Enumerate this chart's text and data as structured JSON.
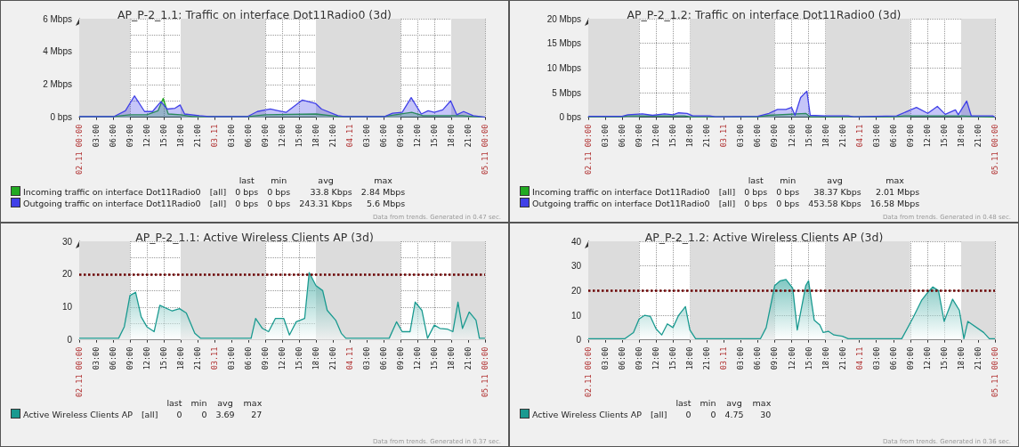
{
  "chart_data": [
    {
      "type": "area",
      "title": "AP_P-2_1.1: Traffic on interface Dot11Radio0 (3d)",
      "xlim": [
        "--11-02T00:00",
        "--11-05T00:00"
      ],
      "xticks": [
        {
          "value": "--11-02T00:00",
          "label": "02.11 00:00"
        },
        {
          "value": "--11-02T03:00",
          "label": "03:00"
        },
        {
          "value": "--11-02T06:00",
          "label": "06:00"
        },
        {
          "value": "--11-02T09:00",
          "label": "09:00"
        },
        {
          "value": "--11-02T12:00",
          "label": "12:00"
        },
        {
          "value": "--11-02T15:00",
          "label": "15:00"
        },
        {
          "value": "--11-02T18:00",
          "label": "18:00"
        },
        {
          "value": "--11-02T21:00",
          "label": "21:00"
        },
        {
          "value": "--11-03T00:00",
          "label": "03.11"
        },
        {
          "value": "--11-03T03:00",
          "label": "03:00"
        },
        {
          "value": "--11-03T06:00",
          "label": "06:00"
        },
        {
          "value": "--11-03T09:00",
          "label": "09:00"
        },
        {
          "value": "--11-03T12:00",
          "label": "12:00"
        },
        {
          "value": "--11-03T15:00",
          "label": "15:00"
        },
        {
          "value": "--11-03T18:00",
          "label": "18:00"
        },
        {
          "value": "--11-03T21:00",
          "label": "21:00"
        },
        {
          "value": "--11-04T00:00",
          "label": "04.11"
        },
        {
          "value": "--11-04T03:00",
          "label": "03:00"
        },
        {
          "value": "--11-04T06:00",
          "label": "06:00"
        },
        {
          "value": "--11-04T09:00",
          "label": "09:00"
        },
        {
          "value": "--11-04T12:00",
          "label": "12:00"
        },
        {
          "value": "--11-04T15:00",
          "label": "15:00"
        },
        {
          "value": "--11-04T18:00",
          "label": "18:00"
        },
        {
          "value": "--11-04T21:00",
          "label": "21:00"
        },
        {
          "value": "--11-05T00:00",
          "label": "05.11 00:00"
        }
      ],
      "ylim": [
        0,
        6
      ],
      "yticks": [
        {
          "value": 0,
          "label": "0 bps"
        },
        {
          "value": 1,
          "label": null
        },
        {
          "value": 2,
          "label": "2 Mbps"
        },
        {
          "value": 3,
          "label": null
        },
        {
          "value": 4,
          "label": "4 Mbps"
        },
        {
          "value": 5,
          "label": null
        },
        {
          "value": 6,
          "label": "6 Mbps"
        }
      ],
      "grid": true,
      "legend": "bottom left",
      "bands": [
        {
          "axis": "x",
          "from": "--11-02T00:00",
          "to": "--11-02T09:00",
          "color": "#dcdcdc"
        },
        {
          "axis": "x",
          "from": "--11-02T18:00",
          "to": "--11-03T09:00",
          "color": "#dcdcdc"
        },
        {
          "axis": "x",
          "from": "--11-03T18:00",
          "to": "--11-04T09:00",
          "color": "#dcdcdc"
        },
        {
          "axis": "x",
          "from": "--11-04T18:00",
          "to": "--11-05T00:00",
          "color": "#dcdcdc"
        }
      ],
      "series": [
        {
          "name": "Incoming traffic on interface Dot11Radio0",
          "color": "#22aa22",
          "x": [
            "--11-02T00:00",
            "--11-02T06:00",
            "--11-02T09:00",
            "--11-02T12:00",
            "--11-02T14:00",
            "--11-02T14:54",
            "--11-02T15:48",
            "--11-02T18:00",
            "--11-02T20:00",
            "--11-03T06:00",
            "--11-03T09:00",
            "--11-03T18:00",
            "--11-03T22:00",
            "--11-04T06:00",
            "--11-04T11:00",
            "--11-04T13:00",
            "--11-04T20:00",
            "--11-04T22:00",
            "--11-05T00:00"
          ],
          "values": [
            0.05,
            0.05,
            0.15,
            0.15,
            0.4,
            1.15,
            0.2,
            0.15,
            0.05,
            0.05,
            0.15,
            0.2,
            0.05,
            0.05,
            0.3,
            0.1,
            0.1,
            0.05,
            0
          ]
        },
        {
          "name": "Outgoing traffic on interface Dot11Radio0",
          "color": "#4040e8",
          "x": [
            "--11-02T00:00",
            "--11-02T06:12",
            "--11-02T08:12",
            "--11-02T09:48",
            "--11-02T11:36",
            "--11-02T13:00",
            "--11-02T14:30",
            "--11-02T15:36",
            "--11-02T17:00",
            "--11-02T17:54",
            "--11-02T18:42",
            "--11-02T21:18",
            "--11-02T23:00",
            "--11-03T05:54",
            "--11-03T07:36",
            "--11-03T09:54",
            "--11-03T11:18",
            "--11-03T12:42",
            "--11-03T15:36",
            "--11-03T17:54",
            "--11-03T19:00",
            "--11-03T21:54",
            "--11-03T23:00",
            "--11-04T06:12",
            "--11-04T07:36",
            "--11-04T09:18",
            "--11-04T10:54",
            "--11-04T12:42",
            "--11-04T13:54",
            "--11-04T15:00",
            "--11-04T16:30",
            "--11-04T17:54",
            "--11-04T19:00",
            "--11-04T20:12",
            "--11-04T21:54",
            "--11-05T00:00"
          ],
          "values": [
            0.05,
            0.05,
            0.4,
            1.3,
            0.35,
            0.35,
            0.95,
            0.5,
            0.55,
            0.75,
            0.2,
            0.1,
            0.05,
            0.05,
            0.35,
            0.5,
            0.4,
            0.3,
            1.05,
            0.85,
            0.5,
            0.1,
            0.05,
            0.05,
            0.25,
            0.3,
            1.2,
            0.2,
            0.4,
            0.3,
            0.45,
            1.0,
            0.15,
            0.35,
            0.1,
            0
          ]
        }
      ],
      "annotations": [
        "last",
        "min",
        "avg",
        "max",
        "[all]",
        "0 bps",
        "0 bps",
        "33.8 Kbps",
        "2.84 Mbps",
        "[all]",
        "0 bps",
        "0 bps",
        "243.31 Kbps",
        "5.6 Mbps",
        "Data from trends. Generated in 0.47 sec."
      ]
    },
    {
      "type": "area",
      "title": "AP_P-2_1.2: Traffic on interface Dot11Radio0 (3d)",
      "xlim": [
        "--11-02T00:00",
        "--11-05T00:00"
      ],
      "xticks": [
        {
          "value": "--11-02T00:00",
          "label": "02.11 00:00"
        },
        {
          "value": "--11-02T03:00",
          "label": "03:00"
        },
        {
          "value": "--11-02T06:00",
          "label": "06:00"
        },
        {
          "value": "--11-02T09:00",
          "label": "09:00"
        },
        {
          "value": "--11-02T12:00",
          "label": "12:00"
        },
        {
          "value": "--11-02T15:00",
          "label": "15:00"
        },
        {
          "value": "--11-02T18:00",
          "label": "18:00"
        },
        {
          "value": "--11-02T21:00",
          "label": "21:00"
        },
        {
          "value": "--11-03T00:00",
          "label": "03.11"
        },
        {
          "value": "--11-03T03:00",
          "label": "03:00"
        },
        {
          "value": "--11-03T06:00",
          "label": "06:00"
        },
        {
          "value": "--11-03T09:00",
          "label": "09:00"
        },
        {
          "value": "--11-03T12:00",
          "label": "12:00"
        },
        {
          "value": "--11-03T15:00",
          "label": "15:00"
        },
        {
          "value": "--11-03T18:00",
          "label": "18:00"
        },
        {
          "value": "--11-03T21:00",
          "label": "21:00"
        },
        {
          "value": "--11-04T00:00",
          "label": "04.11"
        },
        {
          "value": "--11-04T03:00",
          "label": "03:00"
        },
        {
          "value": "--11-04T06:00",
          "label": "06:00"
        },
        {
          "value": "--11-04T09:00",
          "label": "09:00"
        },
        {
          "value": "--11-04T12:00",
          "label": "12:00"
        },
        {
          "value": "--11-04T15:00",
          "label": "15:00"
        },
        {
          "value": "--11-04T18:00",
          "label": "18:00"
        },
        {
          "value": "--11-04T21:00",
          "label": "21:00"
        },
        {
          "value": "--11-05T00:00",
          "label": "05.11 00:00"
        }
      ],
      "ylim": [
        0,
        20
      ],
      "yticks": [
        {
          "value": 0,
          "label": "0 bps"
        },
        {
          "value": 5,
          "label": "5 Mbps"
        },
        {
          "value": 10,
          "label": "10 Mbps"
        },
        {
          "value": 15,
          "label": "15 Mbps"
        },
        {
          "value": 20,
          "label": "20 Mbps"
        }
      ],
      "grid": true,
      "legend": "bottom left",
      "bands": [
        {
          "axis": "x",
          "from": "--11-02T00:00",
          "to": "--11-02T09:00",
          "color": "#dcdcdc"
        },
        {
          "axis": "x",
          "from": "--11-02T18:00",
          "to": "--11-03T09:00",
          "color": "#dcdcdc"
        },
        {
          "axis": "x",
          "from": "--11-03T18:00",
          "to": "--11-04T09:00",
          "color": "#dcdcdc"
        },
        {
          "axis": "x",
          "from": "--11-04T18:00",
          "to": "--11-05T00:00",
          "color": "#dcdcdc"
        }
      ],
      "series": [
        {
          "name": "Incoming traffic on interface Dot11Radio0",
          "color": "#22aa22",
          "x": [
            "--11-02T00:00",
            "--11-02T06:00",
            "--11-02T07:00",
            "--11-02T17:00",
            "--11-02T18:00",
            "--11-03T06:00",
            "--11-03T08:00",
            "--11-03T14:30",
            "--11-03T15:18",
            "--11-03T22:00",
            "--11-04T06:00",
            "--11-04T08:00",
            "--11-04T18:00",
            "--11-05T00:00"
          ],
          "values": [
            0.1,
            0.1,
            0.3,
            0.3,
            0.1,
            0.1,
            0.4,
            0.8,
            0.1,
            0.1,
            0.1,
            0.3,
            0.3,
            0
          ]
        },
        {
          "name": "Outgoing traffic on interface Dot11Radio0",
          "color": "#4040e8",
          "x": [
            "--11-02T00:00",
            "--11-02T06:00",
            "--11-02T07:00",
            "--11-02T09:36",
            "--11-02T11:24",
            "--11-02T13:30",
            "--11-02T15:00",
            "--11-02T16:00",
            "--11-02T17:30",
            "--11-02T18:30",
            "--11-02T21:30",
            "--11-02T22:30",
            "--11-03T06:00",
            "--11-03T08:00",
            "--11-03T09:30",
            "--11-03T11:00",
            "--11-03T12:00",
            "--11-03T12:36",
            "--11-03T13:36",
            "--11-03T14:42",
            "--11-03T15:18",
            "--11-03T18:00",
            "--11-03T22:00",
            "--11-03T23:00",
            "--11-04T06:36",
            "--11-04T10:06",
            "--11-04T12:06",
            "--11-04T13:48",
            "--11-04T15:12",
            "--11-04T17:00",
            "--11-04T17:30",
            "--11-04T19:00",
            "--11-04T19:48",
            "--11-04T23:36",
            "--11-05T00:00"
          ],
          "values": [
            0.2,
            0.2,
            0.5,
            0.7,
            0.4,
            0.7,
            0.5,
            0.9,
            0.8,
            0.3,
            0.3,
            0.1,
            0.2,
            0.8,
            1.6,
            1.6,
            2.0,
            0.4,
            4.0,
            5.3,
            0.4,
            0.3,
            0.3,
            0.1,
            0.3,
            2.0,
            0.8,
            2.2,
            0.6,
            1.5,
            0.5,
            3.3,
            0.3,
            0.3,
            0
          ]
        }
      ],
      "annotations": [
        "last",
        "min",
        "avg",
        "max",
        "[all]",
        "0 bps",
        "0 bps",
        "38.37 Kbps",
        "2.01 Mbps",
        "[all]",
        "0 bps",
        "0 bps",
        "453.58 Kbps",
        "16.58 Mbps",
        "Data from trends. Generated in 0.48 sec."
      ]
    },
    {
      "type": "area",
      "title": "AP_P-2_1.1: Active Wireless Clients AP (3d)",
      "xlim": [
        "--11-02T00:00",
        "--11-05T00:00"
      ],
      "xticks": [
        {
          "value": "--11-02T00:00",
          "label": "02.11 00:00"
        },
        {
          "value": "--11-02T03:00",
          "label": "03:00"
        },
        {
          "value": "--11-02T06:00",
          "label": "06:00"
        },
        {
          "value": "--11-02T09:00",
          "label": "09:00"
        },
        {
          "value": "--11-02T12:00",
          "label": "12:00"
        },
        {
          "value": "--11-02T15:00",
          "label": "15:00"
        },
        {
          "value": "--11-02T18:00",
          "label": "18:00"
        },
        {
          "value": "--11-02T21:00",
          "label": "21:00"
        },
        {
          "value": "--11-03T00:00",
          "label": "03.11"
        },
        {
          "value": "--11-03T03:00",
          "label": "03:00"
        },
        {
          "value": "--11-03T06:00",
          "label": "06:00"
        },
        {
          "value": "--11-03T09:00",
          "label": "09:00"
        },
        {
          "value": "--11-03T12:00",
          "label": "12:00"
        },
        {
          "value": "--11-03T15:00",
          "label": "15:00"
        },
        {
          "value": "--11-03T18:00",
          "label": "18:00"
        },
        {
          "value": "--11-03T21:00",
          "label": "21:00"
        },
        {
          "value": "--11-04T00:00",
          "label": "04.11"
        },
        {
          "value": "--11-04T03:00",
          "label": "03:00"
        },
        {
          "value": "--11-04T06:00",
          "label": "06:00"
        },
        {
          "value": "--11-04T09:00",
          "label": "09:00"
        },
        {
          "value": "--11-04T12:00",
          "label": "12:00"
        },
        {
          "value": "--11-04T15:00",
          "label": "15:00"
        },
        {
          "value": "--11-04T18:00",
          "label": "18:00"
        },
        {
          "value": "--11-04T21:00",
          "label": "21:00"
        },
        {
          "value": "--11-05T00:00",
          "label": "05.11 00:00"
        }
      ],
      "ylim": [
        0,
        30
      ],
      "yticks": [
        0,
        {
          "value": 5,
          "label": null
        },
        10,
        {
          "value": 15,
          "label": null
        },
        20,
        {
          "value": 25,
          "label": null
        },
        30
      ],
      "grid": true,
      "legend": "bottom left",
      "bands": [
        {
          "axis": "x",
          "from": "--11-02T00:00",
          "to": "--11-02T09:00",
          "color": "#dcdcdc"
        },
        {
          "axis": "x",
          "from": "--11-02T18:00",
          "to": "--11-03T09:00",
          "color": "#dcdcdc"
        },
        {
          "axis": "x",
          "from": "--11-03T18:00",
          "to": "--11-04T09:00",
          "color": "#dcdcdc"
        },
        {
          "axis": "x",
          "from": "--11-04T18:00",
          "to": "--11-05T00:00",
          "color": "#dcdcdc"
        }
      ],
      "ref_lines": [
        {
          "axis": "y",
          "value": 20,
          "color": "#6a0000",
          "line_style": "dotted"
        }
      ],
      "series": [
        {
          "name": "Active Wireless Clients AP",
          "color": "#1a9a90",
          "x": [
            "--11-02T00:00",
            "--11-02T07:00",
            "--11-02T08:00",
            "--11-02T09:00",
            "--11-02T10:00",
            "--11-02T11:00",
            "--11-02T12:00",
            "--11-02T13:18",
            "--11-02T14:18",
            "--11-02T16:30",
            "--11-02T17:48",
            "--11-02T19:00",
            "--11-02T20:30",
            "--11-02T21:30",
            "--11-03T06:30",
            "--11-03T07:18",
            "--11-03T08:30",
            "--11-03T09:36",
            "--11-03T10:48",
            "--11-03T12:18",
            "--11-03T13:18",
            "--11-03T14:30",
            "--11-03T16:00",
            "--11-03T16:48",
            "--11-03T18:00",
            "--11-03T19:12",
            "--11-03T20:00",
            "--11-03T21:30",
            "--11-03T22:30",
            "--11-03T23:18",
            "--11-04T07:00",
            "--11-04T08:18",
            "--11-04T09:18",
            "--11-04T10:42",
            "--11-04T11:36",
            "--11-04T12:48",
            "--11-04T13:48",
            "--11-04T15:00",
            "--11-04T16:00",
            "--11-04T17:18",
            "--11-04T18:18",
            "--11-04T19:12",
            "--11-04T20:00",
            "--11-04T21:12",
            "--11-04T22:24",
            "--11-04T23:00",
            "--11-05T00:00"
          ],
          "values": [
            0.5,
            0.5,
            4,
            13.5,
            14.5,
            7,
            4,
            2.5,
            10.5,
            8.8,
            9.5,
            8.2,
            2,
            0.5,
            0.5,
            6.5,
            3.5,
            2.5,
            6.5,
            6.5,
            1.5,
            5.5,
            6.5,
            20.5,
            16.5,
            15,
            9,
            6,
            2,
            0.5,
            0.5,
            5.5,
            2.5,
            2.5,
            11.5,
            9,
            0.5,
            4.5,
            3.5,
            3.3,
            2.5,
            11.5,
            3.5,
            8.5,
            6,
            0.5,
            0.5
          ]
        }
      ],
      "annotations": [
        "last",
        "min",
        "avg",
        "max",
        "[all]",
        "0",
        "0",
        "3.69",
        "27",
        "Data from trends. Generated in 0.37 sec."
      ]
    },
    {
      "type": "area",
      "title": "AP_P-2_1.2: Active Wireless Clients AP (3d)",
      "xlim": [
        "--11-02T00:00",
        "--11-05T00:00"
      ],
      "xticks": [
        {
          "value": "--11-02T00:00",
          "label": "02.11 00:00"
        },
        {
          "value": "--11-02T03:00",
          "label": "03:00"
        },
        {
          "value": "--11-02T06:00",
          "label": "06:00"
        },
        {
          "value": "--11-02T09:00",
          "label": "09:00"
        },
        {
          "value": "--11-02T12:00",
          "label": "12:00"
        },
        {
          "value": "--11-02T15:00",
          "label": "15:00"
        },
        {
          "value": "--11-02T18:00",
          "label": "18:00"
        },
        {
          "value": "--11-02T21:00",
          "label": "21:00"
        },
        {
          "value": "--11-03T00:00",
          "label": "03.11"
        },
        {
          "value": "--11-03T03:00",
          "label": "03:00"
        },
        {
          "value": "--11-03T06:00",
          "label": "06:00"
        },
        {
          "value": "--11-03T09:00",
          "label": "09:00"
        },
        {
          "value": "--11-03T12:00",
          "label": "12:00"
        },
        {
          "value": "--11-03T15:00",
          "label": "15:00"
        },
        {
          "value": "--11-03T18:00",
          "label": "18:00"
        },
        {
          "value": "--11-03T21:00",
          "label": "21:00"
        },
        {
          "value": "--11-04T00:00",
          "label": "04.11"
        },
        {
          "value": "--11-04T03:00",
          "label": "03:00"
        },
        {
          "value": "--11-04T06:00",
          "label": "06:00"
        },
        {
          "value": "--11-04T09:00",
          "label": "09:00"
        },
        {
          "value": "--11-04T12:00",
          "label": "12:00"
        },
        {
          "value": "--11-04T15:00",
          "label": "15:00"
        },
        {
          "value": "--11-04T18:00",
          "label": "18:00"
        },
        {
          "value": "--11-04T21:00",
          "label": "21:00"
        },
        {
          "value": "--11-05T00:00",
          "label": "05.11 00:00"
        }
      ],
      "ylim": [
        0,
        40
      ],
      "yticks": [
        0,
        10,
        20,
        30,
        40
      ],
      "grid": true,
      "legend": "bottom left",
      "bands": [
        {
          "axis": "x",
          "from": "--11-02T00:00",
          "to": "--11-02T09:00",
          "color": "#dcdcdc"
        },
        {
          "axis": "x",
          "from": "--11-02T18:00",
          "to": "--11-03T09:00",
          "color": "#dcdcdc"
        },
        {
          "axis": "x",
          "from": "--11-03T18:00",
          "to": "--11-04T09:00",
          "color": "#dcdcdc"
        },
        {
          "axis": "x",
          "from": "--11-04T18:00",
          "to": "--11-05T00:00",
          "color": "#dcdcdc"
        }
      ],
      "ref_lines": [
        {
          "axis": "y",
          "value": 20,
          "color": "#6a0000",
          "line_style": "dotted"
        }
      ],
      "series": [
        {
          "name": "Active Wireless Clients AP",
          "color": "#1a9a90",
          "x": [
            "--11-02T00:00",
            "--11-02T06:30",
            "--11-02T08:00",
            "--11-02T09:00",
            "--11-02T10:00",
            "--11-02T11:00",
            "--11-02T12:00",
            "--11-02T13:00",
            "--11-02T14:00",
            "--11-02T15:00",
            "--11-02T16:00",
            "--11-02T17:12",
            "--11-02T18:00",
            "--11-02T19:00",
            "--11-03T06:30",
            "--11-03T07:30",
            "--11-03T09:00",
            "--11-03T10:00",
            "--11-03T11:00",
            "--11-03T12:12",
            "--11-03T13:00",
            "--11-03T14:30",
            "--11-03T15:00",
            "--11-03T16:00",
            "--11-03T17:00",
            "--11-03T17:36",
            "--11-03T18:30",
            "--11-03T19:30",
            "--11-03T21:00",
            "--11-03T22:00",
            "--11-04T07:30",
            "--11-04T09:30",
            "--11-04T11:00",
            "--11-04T12:00",
            "--11-04T13:00",
            "--11-04T14:00",
            "--11-04T15:00",
            "--11-04T16:30",
            "--11-04T17:42",
            "--11-04T18:30",
            "--11-04T19:12",
            "--11-04T22:00",
            "--11-04T23:00",
            "--11-05T00:00"
          ],
          "values": [
            0.5,
            0.5,
            3,
            8.5,
            10,
            9.5,
            4.5,
            2,
            6.5,
            5,
            10,
            13.5,
            4,
            0.5,
            0.5,
            5,
            22,
            24,
            24.5,
            21,
            4,
            22,
            24,
            8,
            6,
            3,
            3.5,
            2,
            1.5,
            0.5,
            0.5,
            9,
            16,
            19,
            21.5,
            20,
            7.5,
            16.5,
            12,
            0.5,
            7.5,
            3,
            0.5,
            0.5
          ]
        }
      ],
      "annotations": [
        "last",
        "min",
        "avg",
        "max",
        "[all]",
        "0",
        "0",
        "4.75",
        "30",
        "Data from trends. Generated in 0.36 sec."
      ]
    }
  ]
}
